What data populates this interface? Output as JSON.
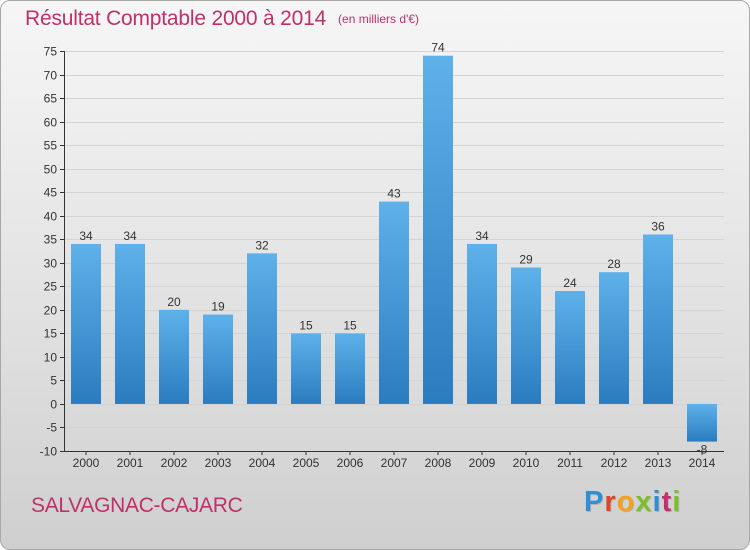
{
  "title": "Résultat Comptable 2000 à 2014",
  "subtitle": "(en milliers d'€)",
  "commune": "SALVAGNAC-CAJARC",
  "logo": {
    "letters": [
      "P",
      "r",
      "o",
      "x",
      "i",
      "t",
      "i"
    ],
    "colors": [
      "#2f8fd5",
      "#e0442a",
      "#f2a21c",
      "#7cbf2a",
      "#2f8fd5",
      "#c0306a",
      "#7cbf2a"
    ]
  },
  "colors": {
    "title": "#c0306a",
    "bar_top": "#5fb1ea",
    "bar_bottom": "#2a7cbf",
    "grid": "#d4d4d4",
    "axis": "#333333"
  },
  "chart_data": {
    "type": "bar",
    "categories": [
      "2000",
      "2001",
      "2002",
      "2003",
      "2004",
      "2005",
      "2006",
      "2007",
      "2008",
      "2009",
      "2010",
      "2011",
      "2012",
      "2013",
      "2014"
    ],
    "values": [
      34,
      34,
      20,
      19,
      32,
      15,
      15,
      43,
      74,
      34,
      29,
      24,
      28,
      36,
      -8
    ],
    "data_labels": [
      "34",
      "34",
      "20",
      "19",
      "32",
      "15",
      "15",
      "43",
      "74",
      "34",
      "29",
      "24",
      "28",
      "36",
      "-8"
    ],
    "ylim": [
      -10,
      75
    ],
    "y_ticks": [
      -10,
      -5,
      0,
      5,
      10,
      15,
      20,
      25,
      30,
      35,
      40,
      45,
      50,
      55,
      60,
      65,
      70,
      75
    ],
    "grid": true
  }
}
